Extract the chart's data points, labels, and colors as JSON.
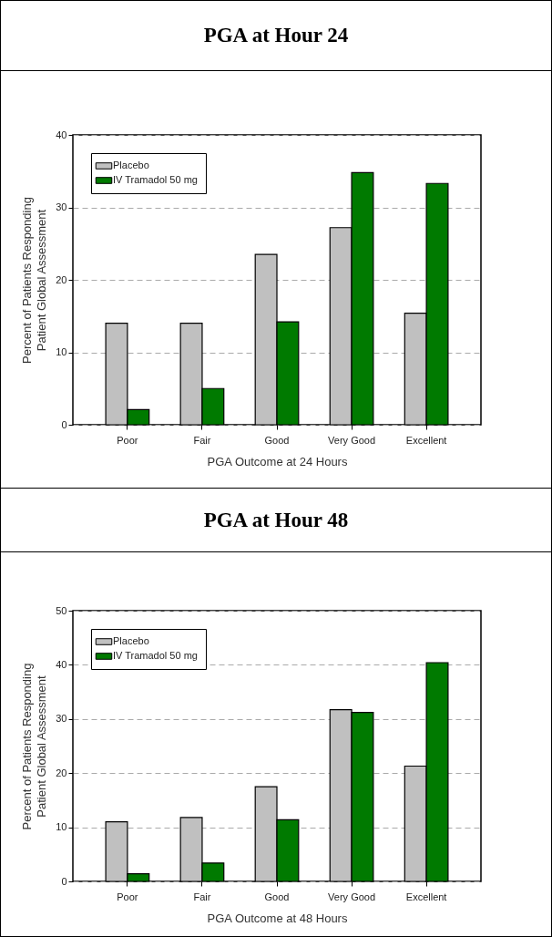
{
  "chart_data": [
    {
      "type": "bar",
      "title": "PGA at Hour 24",
      "xlabel": "PGA Outcome at 24 Hours",
      "ylabel": "Percent of Patients Responding\nPatient Global Assessment",
      "categories": [
        "Poor",
        "Fair",
        "Good",
        "Very Good",
        "Excellent"
      ],
      "series": [
        {
          "name": "Placebo",
          "color": "#c0c0c0",
          "values": [
            14.0,
            14.0,
            23.5,
            27.2,
            15.4
          ]
        },
        {
          "name": "IV Tramadol 50 mg",
          "color": "#007a00",
          "values": [
            2.1,
            5.0,
            14.2,
            34.8,
            33.3
          ]
        }
      ],
      "ylim": [
        0,
        40
      ],
      "yticks": [
        0,
        10,
        20,
        30,
        40
      ],
      "grid": "y",
      "legend": "top left"
    },
    {
      "type": "bar",
      "title": "PGA at Hour 48",
      "xlabel": "PGA Outcome at 48 Hours",
      "ylabel": "Percent of Patients Responding\nPatient Global Assessment",
      "categories": [
        "Poor",
        "Fair",
        "Good",
        "Very Good",
        "Excellent"
      ],
      "series": [
        {
          "name": "Placebo",
          "color": "#c0c0c0",
          "values": [
            11.0,
            11.8,
            17.5,
            31.7,
            21.3
          ]
        },
        {
          "name": "IV Tramadol 50 mg",
          "color": "#007a00",
          "values": [
            1.4,
            3.4,
            11.4,
            31.2,
            40.4
          ]
        }
      ],
      "ylim": [
        0,
        50
      ],
      "yticks": [
        0,
        10,
        20,
        30,
        40,
        50
      ],
      "grid": "y",
      "legend": "top left"
    }
  ]
}
